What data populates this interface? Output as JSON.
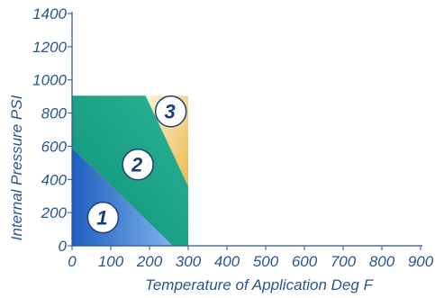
{
  "chart_data": {
    "type": "area",
    "title": "",
    "xlabel": "Temperature of Application Deg F",
    "ylabel": "Internal Pressure PSI",
    "xlim": [
      0,
      900
    ],
    "ylim": [
      0,
      1400
    ],
    "x_ticks": [
      0,
      100,
      200,
      300,
      400,
      500,
      600,
      700,
      800,
      900
    ],
    "y_ticks": [
      0,
      200,
      400,
      600,
      800,
      1000,
      1200,
      1400
    ],
    "grid": false,
    "zones": [
      {
        "label": "1",
        "color": "#4a86d8",
        "polygon": [
          [
            0,
            0
          ],
          [
            0,
            590
          ],
          [
            260,
            0
          ]
        ],
        "label_at": [
          80,
          170
        ]
      },
      {
        "label": "2",
        "color": "#18a88a",
        "polygon": [
          [
            0,
            590
          ],
          [
            0,
            905
          ],
          [
            190,
            905
          ],
          [
            300,
            360
          ],
          [
            300,
            0
          ],
          [
            260,
            0
          ]
        ],
        "label_at": [
          170,
          490
        ]
      },
      {
        "label": "3",
        "color": "#f2cf72",
        "polygon": [
          [
            190,
            905
          ],
          [
            300,
            905
          ],
          [
            300,
            360
          ]
        ],
        "label_at": [
          255,
          810
        ]
      }
    ]
  },
  "colors": {
    "axis": "#2a5590",
    "text": "#2a5590",
    "zone_label_circle": "#ffffff",
    "zone_label_outline": "#1c3f78"
  }
}
